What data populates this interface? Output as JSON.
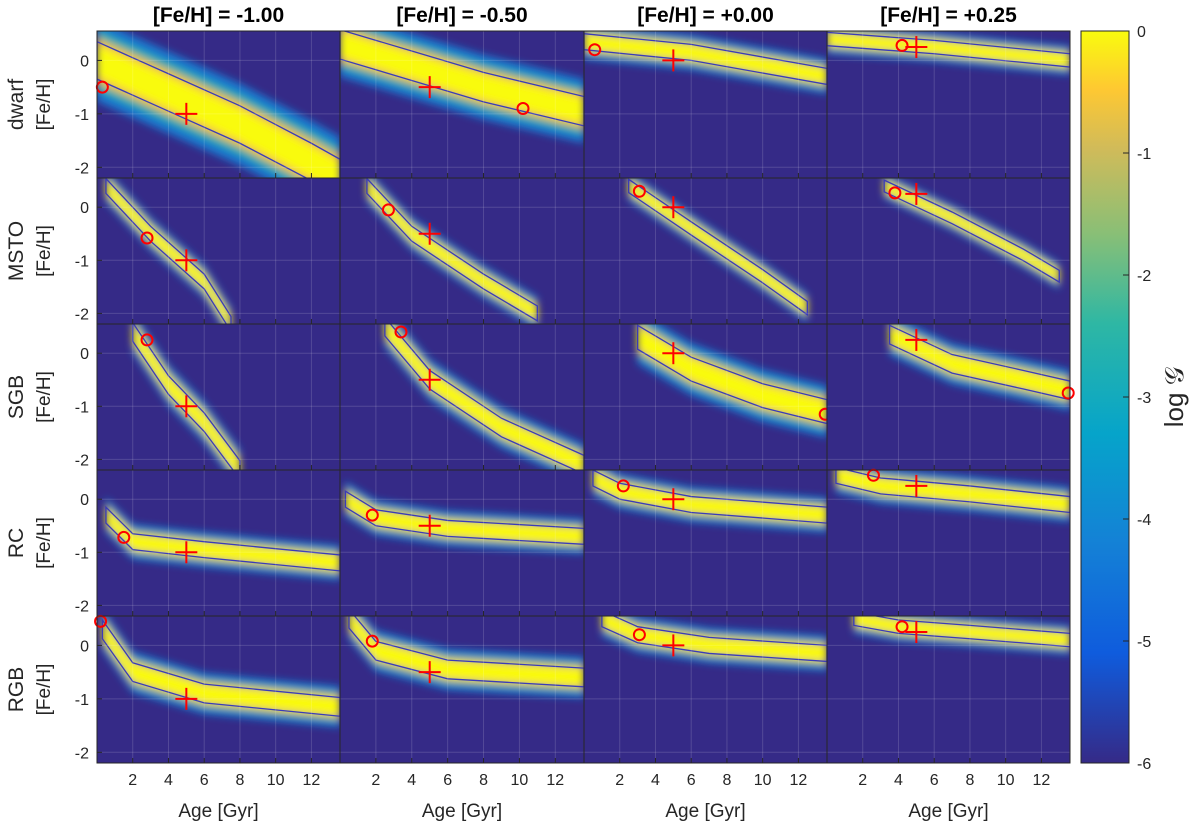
{
  "chart_data": {
    "type": "heatmap",
    "columns": [
      "[Fe/H] = -1.00",
      "[Fe/H] = -0.50",
      "[Fe/H] = +0.00",
      "[Fe/H] = +0.25"
    ],
    "rows": [
      "dwarf",
      "MSTO",
      "SGB",
      "RC",
      "RGB"
    ],
    "ylabel": "[Fe/H]",
    "xlabel": "Age [Gyr]",
    "xlim": [
      0,
      13.6
    ],
    "ylim": [
      -2.2,
      0.55
    ],
    "xticks": [
      2,
      4,
      6,
      8,
      10,
      12
    ],
    "yticks": [
      0,
      -1,
      -2
    ],
    "colorbar": {
      "label": "log 𝒢",
      "range": [
        -6,
        0
      ],
      "ticks": [
        0,
        -1,
        -2,
        -3,
        -4,
        -5,
        -6
      ]
    },
    "true_values": [
      {
        "col": 0,
        "age": 5.0,
        "feh": -1.0
      },
      {
        "col": 1,
        "age": 5.0,
        "feh": -0.5
      },
      {
        "col": 2,
        "age": 5.0,
        "feh": 0.0
      },
      {
        "col": 3,
        "age": 5.0,
        "feh": 0.25
      }
    ],
    "best_fit_circles": [
      {
        "row": "dwarf",
        "col": 0,
        "age": 0.3,
        "feh": -0.5
      },
      {
        "row": "dwarf",
        "col": 1,
        "age": 10.2,
        "feh": -0.9
      },
      {
        "row": "dwarf",
        "col": 2,
        "age": 0.6,
        "feh": 0.2
      },
      {
        "row": "dwarf",
        "col": 3,
        "age": 4.2,
        "feh": 0.28
      },
      {
        "row": "MSTO",
        "col": 0,
        "age": 2.8,
        "feh": -0.58
      },
      {
        "row": "MSTO",
        "col": 1,
        "age": 2.7,
        "feh": -0.05
      },
      {
        "row": "MSTO",
        "col": 2,
        "age": 3.1,
        "feh": 0.3
      },
      {
        "row": "MSTO",
        "col": 3,
        "age": 3.8,
        "feh": 0.27
      },
      {
        "row": "SGB",
        "col": 0,
        "age": 2.8,
        "feh": 0.25
      },
      {
        "row": "SGB",
        "col": 1,
        "age": 3.4,
        "feh": 0.4
      },
      {
        "row": "SGB",
        "col": 2,
        "age": 13.5,
        "feh": -1.15
      },
      {
        "row": "SGB",
        "col": 3,
        "age": 13.5,
        "feh": -0.75
      },
      {
        "row": "RC",
        "col": 0,
        "age": 1.5,
        "feh": -0.72
      },
      {
        "row": "RC",
        "col": 1,
        "age": 1.8,
        "feh": -0.3
      },
      {
        "row": "RC",
        "col": 2,
        "age": 2.2,
        "feh": 0.25
      },
      {
        "row": "RC",
        "col": 3,
        "age": 2.6,
        "feh": 0.45
      },
      {
        "row": "RGB",
        "col": 0,
        "age": 0.2,
        "feh": 0.45
      },
      {
        "row": "RGB",
        "col": 1,
        "age": 1.8,
        "feh": 0.08
      },
      {
        "row": "RGB",
        "col": 2,
        "age": 3.1,
        "feh": 0.2
      },
      {
        "row": "RGB",
        "col": 3,
        "age": 4.2,
        "feh": 0.35
      }
    ]
  }
}
